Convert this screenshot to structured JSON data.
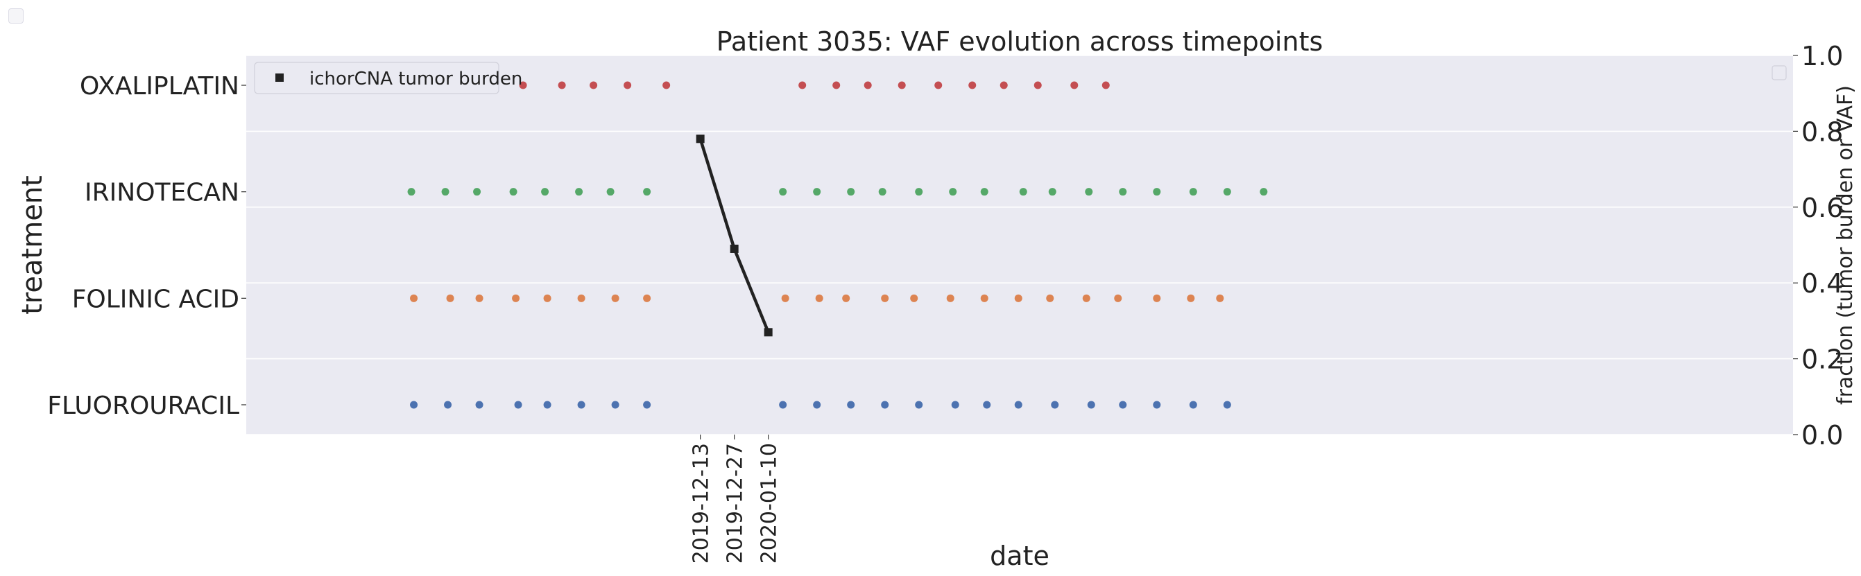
{
  "chart_data": {
    "type": "scatter",
    "title": "Patient 3035: VAF evolution across timepoints",
    "xlabel": "date",
    "ylabel_left": "treatment",
    "ylabel_right": "fraction (tumor burden or VAF)",
    "grid": true,
    "background_color": "#eaeaf2",
    "left_axis": {
      "categories": [
        "FLUOROURACIL",
        "FOLINIC ACID",
        "IRINOTECAN",
        "OXALIPLATIN"
      ]
    },
    "right_axis": {
      "ylim": [
        0,
        1
      ],
      "ticks": [
        "0.0",
        "0.2",
        "0.4",
        "0.6",
        "0.8",
        "1.0"
      ]
    },
    "x_axis": {
      "xlim": [
        "2019-06-09",
        "2021-03-07"
      ],
      "ticks": [
        "2019-12-13",
        "2019-12-27",
        "2020-01-10"
      ]
    },
    "treatment_series": [
      {
        "category": "OXALIPLATIN",
        "color": "#c44e52",
        "dates": [
          "2019-09-15",
          "2019-10-01",
          "2019-10-17",
          "2019-10-30",
          "2019-11-13",
          "2019-11-29",
          "2020-01-24",
          "2020-02-07",
          "2020-02-20",
          "2020-03-05",
          "2020-03-20",
          "2020-04-03",
          "2020-04-16",
          "2020-04-30",
          "2020-05-15",
          "2020-05-28"
        ]
      },
      {
        "category": "IRINOTECAN",
        "color": "#55a868",
        "dates": [
          "2019-08-16",
          "2019-08-30",
          "2019-09-12",
          "2019-09-27",
          "2019-10-10",
          "2019-10-24",
          "2019-11-06",
          "2019-11-21",
          "2020-01-16",
          "2020-01-30",
          "2020-02-13",
          "2020-02-26",
          "2020-03-12",
          "2020-03-26",
          "2020-04-08",
          "2020-04-24",
          "2020-05-06",
          "2020-05-21",
          "2020-06-04",
          "2020-06-18",
          "2020-07-03",
          "2020-07-17",
          "2020-08-01"
        ]
      },
      {
        "category": "FOLINIC ACID",
        "color": "#dd8452",
        "dates": [
          "2019-08-17",
          "2019-09-01",
          "2019-09-13",
          "2019-09-28",
          "2019-10-11",
          "2019-10-25",
          "2019-11-08",
          "2019-11-21",
          "2020-01-17",
          "2020-01-31",
          "2020-02-11",
          "2020-02-27",
          "2020-03-10",
          "2020-03-25",
          "2020-04-08",
          "2020-04-22",
          "2020-05-05",
          "2020-05-20",
          "2020-06-02",
          "2020-06-18",
          "2020-07-02",
          "2020-07-14"
        ]
      },
      {
        "category": "FLUOROURACIL",
        "color": "#4c72b0",
        "dates": [
          "2019-08-17",
          "2019-08-31",
          "2019-09-13",
          "2019-09-29",
          "2019-10-11",
          "2019-10-25",
          "2019-11-08",
          "2019-11-21",
          "2020-01-16",
          "2020-01-30",
          "2020-02-13",
          "2020-02-27",
          "2020-03-12",
          "2020-03-27",
          "2020-04-09",
          "2020-04-22",
          "2020-05-07",
          "2020-05-22",
          "2020-06-04",
          "2020-06-18",
          "2020-07-03",
          "2020-07-17"
        ]
      }
    ],
    "tumor_burden": {
      "name": "ichorCNA tumor burden",
      "color": "#222222",
      "dates": [
        "2019-12-13",
        "2019-12-27",
        "2020-01-10"
      ],
      "values": [
        0.78,
        0.49,
        0.27
      ]
    },
    "legend": {
      "placement": "top-left",
      "entries": [
        "ichorCNA tumor burden"
      ]
    }
  }
}
